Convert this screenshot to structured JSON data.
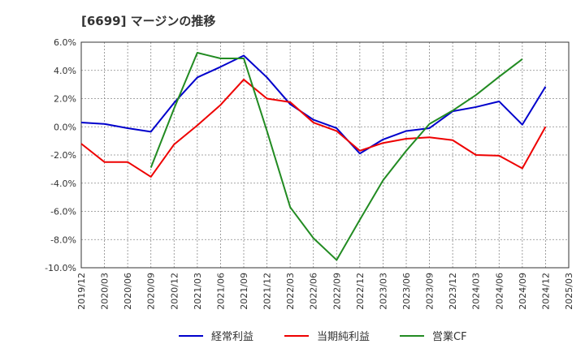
{
  "title": "[6699]  マージンの推移",
  "chart_data": {
    "type": "line",
    "title": "[6699]  マージンの推移",
    "xlabel": "",
    "ylabel": "",
    "ylim": [
      -10,
      6
    ],
    "yticks": [
      6,
      4,
      2,
      0,
      -2,
      -4,
      -6,
      -8,
      -10
    ],
    "ytick_labels": [
      "6.0%",
      "4.0%",
      "2.0%",
      "0.0%",
      "-2.0%",
      "-4.0%",
      "-6.0%",
      "-8.0%",
      "-10.0%"
    ],
    "x_labels": [
      "2019/12",
      "2020/03",
      "2020/06",
      "2020/09",
      "2020/12",
      "2021/03",
      "2021/06",
      "2021/09",
      "2021/12",
      "2022/03",
      "2022/06",
      "2022/09",
      "2022/12",
      "2023/03",
      "2023/06",
      "2023/09",
      "2023/12",
      "2024/03",
      "2024/06",
      "2024/09",
      "2024/12",
      "2025/03"
    ],
    "grid": true,
    "legend_position": "bottom",
    "series": [
      {
        "name": "経常利益",
        "color": "#0000cc",
        "values": [
          0.3,
          0.2,
          -0.1,
          -0.35,
          1.7,
          3.5,
          4.25,
          5.05,
          3.5,
          1.6,
          0.5,
          -0.1,
          -1.9,
          -0.9,
          -0.3,
          -0.1,
          1.1,
          1.4,
          1.8,
          0.15,
          2.85,
          null
        ]
      },
      {
        "name": "当期純利益",
        "color": "#ee0000",
        "values": [
          -1.2,
          -2.5,
          -2.5,
          -3.55,
          -1.25,
          0.1,
          1.55,
          3.35,
          2.0,
          1.75,
          0.3,
          -0.3,
          -1.7,
          -1.15,
          -0.85,
          -0.75,
          -0.95,
          -2.0,
          -2.05,
          -2.95,
          0.0,
          null
        ]
      },
      {
        "name": "営業CF",
        "color": "#228b22",
        "values": [
          null,
          null,
          null,
          -2.9,
          1.3,
          5.25,
          4.85,
          4.85,
          -0.3,
          -5.7,
          -7.9,
          -9.45,
          -6.6,
          -3.8,
          -1.7,
          0.2,
          1.15,
          2.25,
          3.55,
          4.8,
          null,
          null
        ]
      }
    ]
  }
}
